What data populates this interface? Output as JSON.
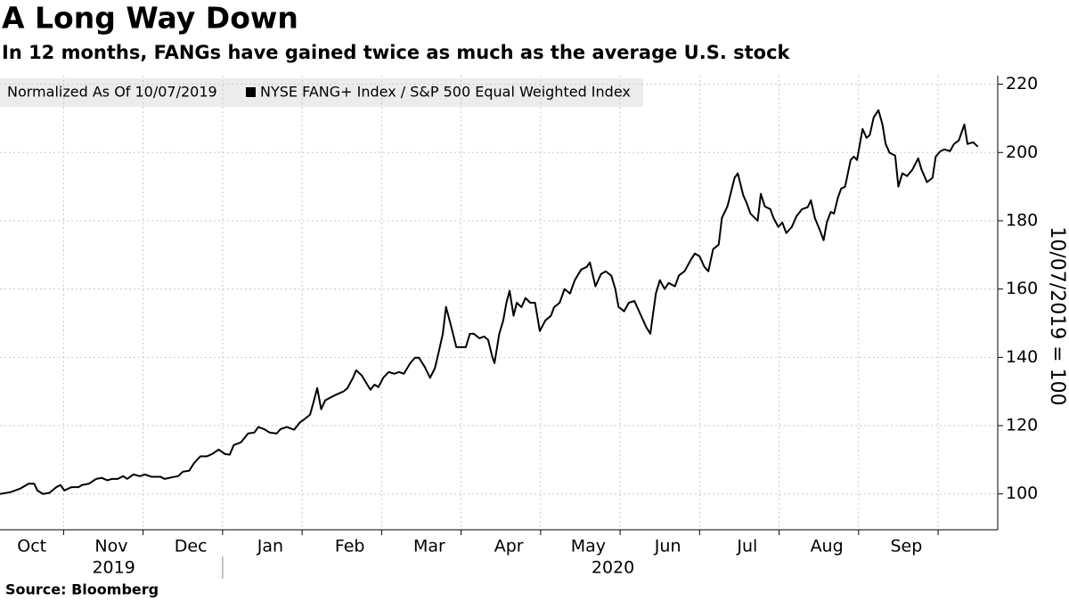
{
  "chart_data": {
    "type": "line",
    "title": "A Long Way Down",
    "subtitle": "In 12 months, FANGs have gained twice as much as the average U.S. stock",
    "legend_note": "Normalized As Of 10/07/2019",
    "y_axis_title": "10/07/2019 = 100",
    "source": "Source: Bloomberg",
    "grid": true,
    "x": [
      0.2,
      0.33,
      0.45,
      0.56,
      0.63,
      0.67,
      0.74,
      0.82,
      0.91,
      0.96,
      1.01,
      1.1,
      1.19,
      1.23,
      1.32,
      1.41,
      1.48,
      1.55,
      1.61,
      1.68,
      1.75,
      1.8,
      1.88,
      1.96,
      2.02,
      2.11,
      2.22,
      2.27,
      2.39,
      2.44,
      2.5,
      2.58,
      2.64,
      2.72,
      2.8,
      2.87,
      2.95,
      3.03,
      3.09,
      3.14,
      3.23,
      3.32,
      3.4,
      3.45,
      3.52,
      3.59,
      3.68,
      3.73,
      3.81,
      3.9,
      3.97,
      4.03,
      4.1,
      4.15,
      4.19,
      4.24,
      4.29,
      4.37,
      4.44,
      4.52,
      4.57,
      4.64,
      4.68,
      4.75,
      4.82,
      4.86,
      4.91,
      4.96,
      5.02,
      5.09,
      5.16,
      5.22,
      5.28,
      5.36,
      5.42,
      5.47,
      5.54,
      5.61,
      5.67,
      5.72,
      5.77,
      5.81,
      5.87,
      5.94,
      6.01,
      6.06,
      6.11,
      6.16,
      6.23,
      6.29,
      6.34,
      6.39,
      6.42,
      6.48,
      6.53,
      6.57,
      6.61,
      6.66,
      6.7,
      6.76,
      6.81,
      6.87,
      6.93,
      6.99,
      7.06,
      7.13,
      7.17,
      7.24,
      7.3,
      7.37,
      7.43,
      7.51,
      7.58,
      7.62,
      7.69,
      7.76,
      7.82,
      7.89,
      7.94,
      7.98,
      8.05,
      8.11,
      8.18,
      8.25,
      8.33,
      8.38,
      8.45,
      8.5,
      8.56,
      8.61,
      8.69,
      8.74,
      8.81,
      8.89,
      8.94,
      9.0,
      9.06,
      9.11,
      9.17,
      9.24,
      9.28,
      9.35,
      9.39,
      9.44,
      9.48,
      9.55,
      9.59,
      9.64,
      9.73,
      9.77,
      9.82,
      9.89,
      9.93,
      9.99,
      10.04,
      10.09,
      10.16,
      10.22,
      10.29,
      10.36,
      10.4,
      10.45,
      10.51,
      10.56,
      10.6,
      10.65,
      10.69,
      10.74,
      10.78,
      10.83,
      10.9,
      10.94,
      10.98,
      11.05,
      11.1,
      11.14,
      11.19,
      11.25,
      11.3,
      11.34,
      11.39,
      11.46,
      11.5,
      11.55,
      11.61,
      11.68,
      11.75,
      11.79,
      11.86,
      11.93,
      11.97,
      12.03,
      12.08,
      12.15,
      12.2,
      12.26,
      12.33,
      12.37,
      12.44,
      12.5
    ],
    "series": [
      {
        "name": "NYSE FANG+ Index / S&P 500 Equal Weighted Index",
        "color": "#000000",
        "values": [
          100,
          100.5,
          101.5,
          103,
          103,
          101,
          100,
          100.3,
          102,
          102.6,
          101,
          102,
          102,
          102.6,
          103,
          104.4,
          104.7,
          104,
          104.4,
          104.4,
          105.2,
          104.4,
          105.7,
          105.2,
          105.7,
          105,
          105,
          104.4,
          105,
          105.2,
          106.5,
          106.8,
          109,
          111,
          111,
          111.7,
          113,
          111.7,
          111.5,
          114.3,
          115.1,
          117.7,
          118,
          119.6,
          119,
          118,
          117.7,
          119,
          119.6,
          118.8,
          120.9,
          121.9,
          123.2,
          127.4,
          131,
          124.8,
          127.4,
          128.4,
          129.2,
          130,
          131,
          134,
          136.2,
          134.7,
          132,
          130.5,
          132,
          131.3,
          134,
          135.7,
          135.2,
          135.7,
          135.2,
          138.3,
          139.9,
          139.9,
          137.3,
          134,
          136.8,
          141.7,
          146.9,
          154.8,
          149.5,
          143,
          143,
          143,
          146.9,
          146.9,
          145.6,
          146.1,
          145.1,
          140.4,
          138.3,
          146.9,
          150.8,
          156,
          159.5,
          152.2,
          156,
          154.7,
          157.4,
          156,
          156,
          147.7,
          150.8,
          152.2,
          154.7,
          156,
          160,
          158.7,
          162.6,
          165.7,
          166.5,
          167.8,
          160.8,
          164.4,
          165.2,
          163.9,
          160,
          154.8,
          153.5,
          156,
          156.5,
          152.9,
          148.8,
          146.9,
          158.7,
          162.6,
          160,
          161.8,
          160.8,
          164,
          165.2,
          168.6,
          170.4,
          169.6,
          166.5,
          165.2,
          171.7,
          173,
          180.8,
          184.2,
          187.9,
          192.6,
          193.9,
          187.4,
          185.3,
          182.1,
          180,
          187.9,
          184.2,
          183.4,
          180.8,
          178.2,
          179.5,
          176.4,
          178.2,
          181.4,
          183.4,
          184,
          186,
          180.8,
          177.4,
          174.3,
          179.5,
          182.6,
          182.1,
          186.8,
          189.4,
          190,
          197.8,
          198.8,
          197.8,
          206.9,
          204.3,
          205.1,
          210.3,
          212.4,
          208.2,
          202.5,
          199.9,
          199.1,
          190,
          193.9,
          193.1,
          195.1,
          198.3,
          195.1,
          191.3,
          192.6,
          198.8,
          200.4,
          200.9,
          200.4,
          202.5,
          203.5,
          208.2,
          202.5,
          203,
          201.7
        ]
      }
    ],
    "xlim": [
      0.2,
      12.75
    ],
    "xticks": [
      1,
      2,
      3,
      4,
      5,
      6,
      7,
      8,
      9,
      10,
      11,
      12
    ],
    "month_labels": [
      {
        "value": 0.6,
        "label": "Oct"
      },
      {
        "value": 1.6,
        "label": "Nov"
      },
      {
        "value": 2.6,
        "label": "Dec"
      },
      {
        "value": 3.6,
        "label": "Jan"
      },
      {
        "value": 4.6,
        "label": "Feb"
      },
      {
        "value": 5.6,
        "label": "Mar"
      },
      {
        "value": 6.6,
        "label": "Apr"
      },
      {
        "value": 7.6,
        "label": "May"
      },
      {
        "value": 8.6,
        "label": "Jun"
      },
      {
        "value": 9.6,
        "label": "Jul"
      },
      {
        "value": 10.6,
        "label": "Aug"
      },
      {
        "value": 11.6,
        "label": "Sep"
      }
    ],
    "year_labels": [
      {
        "value": 1.63,
        "label": "2019"
      },
      {
        "value": 7.91,
        "label": "2020"
      }
    ],
    "year_divider": 3,
    "ylim": [
      89.5,
      222.5
    ],
    "yticks": [
      100,
      120,
      140,
      160,
      180,
      200,
      220
    ]
  }
}
